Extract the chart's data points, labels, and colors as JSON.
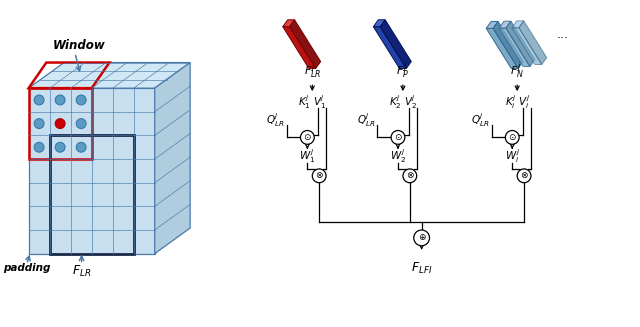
{
  "fig_width": 6.4,
  "fig_height": 3.27,
  "bg_color": "#ffffff",
  "cube_face_color": "#c8dff0",
  "cube_side_color": "#b0ccdf",
  "cube_top_color": "#d0e8f5",
  "cube_edge_color": "#5a8ab0",
  "red_box_color": "#cc0000",
  "dark_box_color": "#1a2a4a",
  "arrow_color": "#4a7aaa",
  "dot_color": "#5a9bc4",
  "dot_edge_color": "#3a7aaa",
  "red_dot_color": "#cc0000",
  "bar_red_face": "#bb1111",
  "bar_red_top": "#dd4444",
  "bar_red_side": "#881111",
  "bar_blue_face": "#2244aa",
  "bar_blue_top": "#4466cc",
  "bar_blue_side": "#112277",
  "bar_lb_face": "#7aaac8",
  "bar_lb_top": "#9bbedd",
  "bar_lb_side": "#5588aa"
}
